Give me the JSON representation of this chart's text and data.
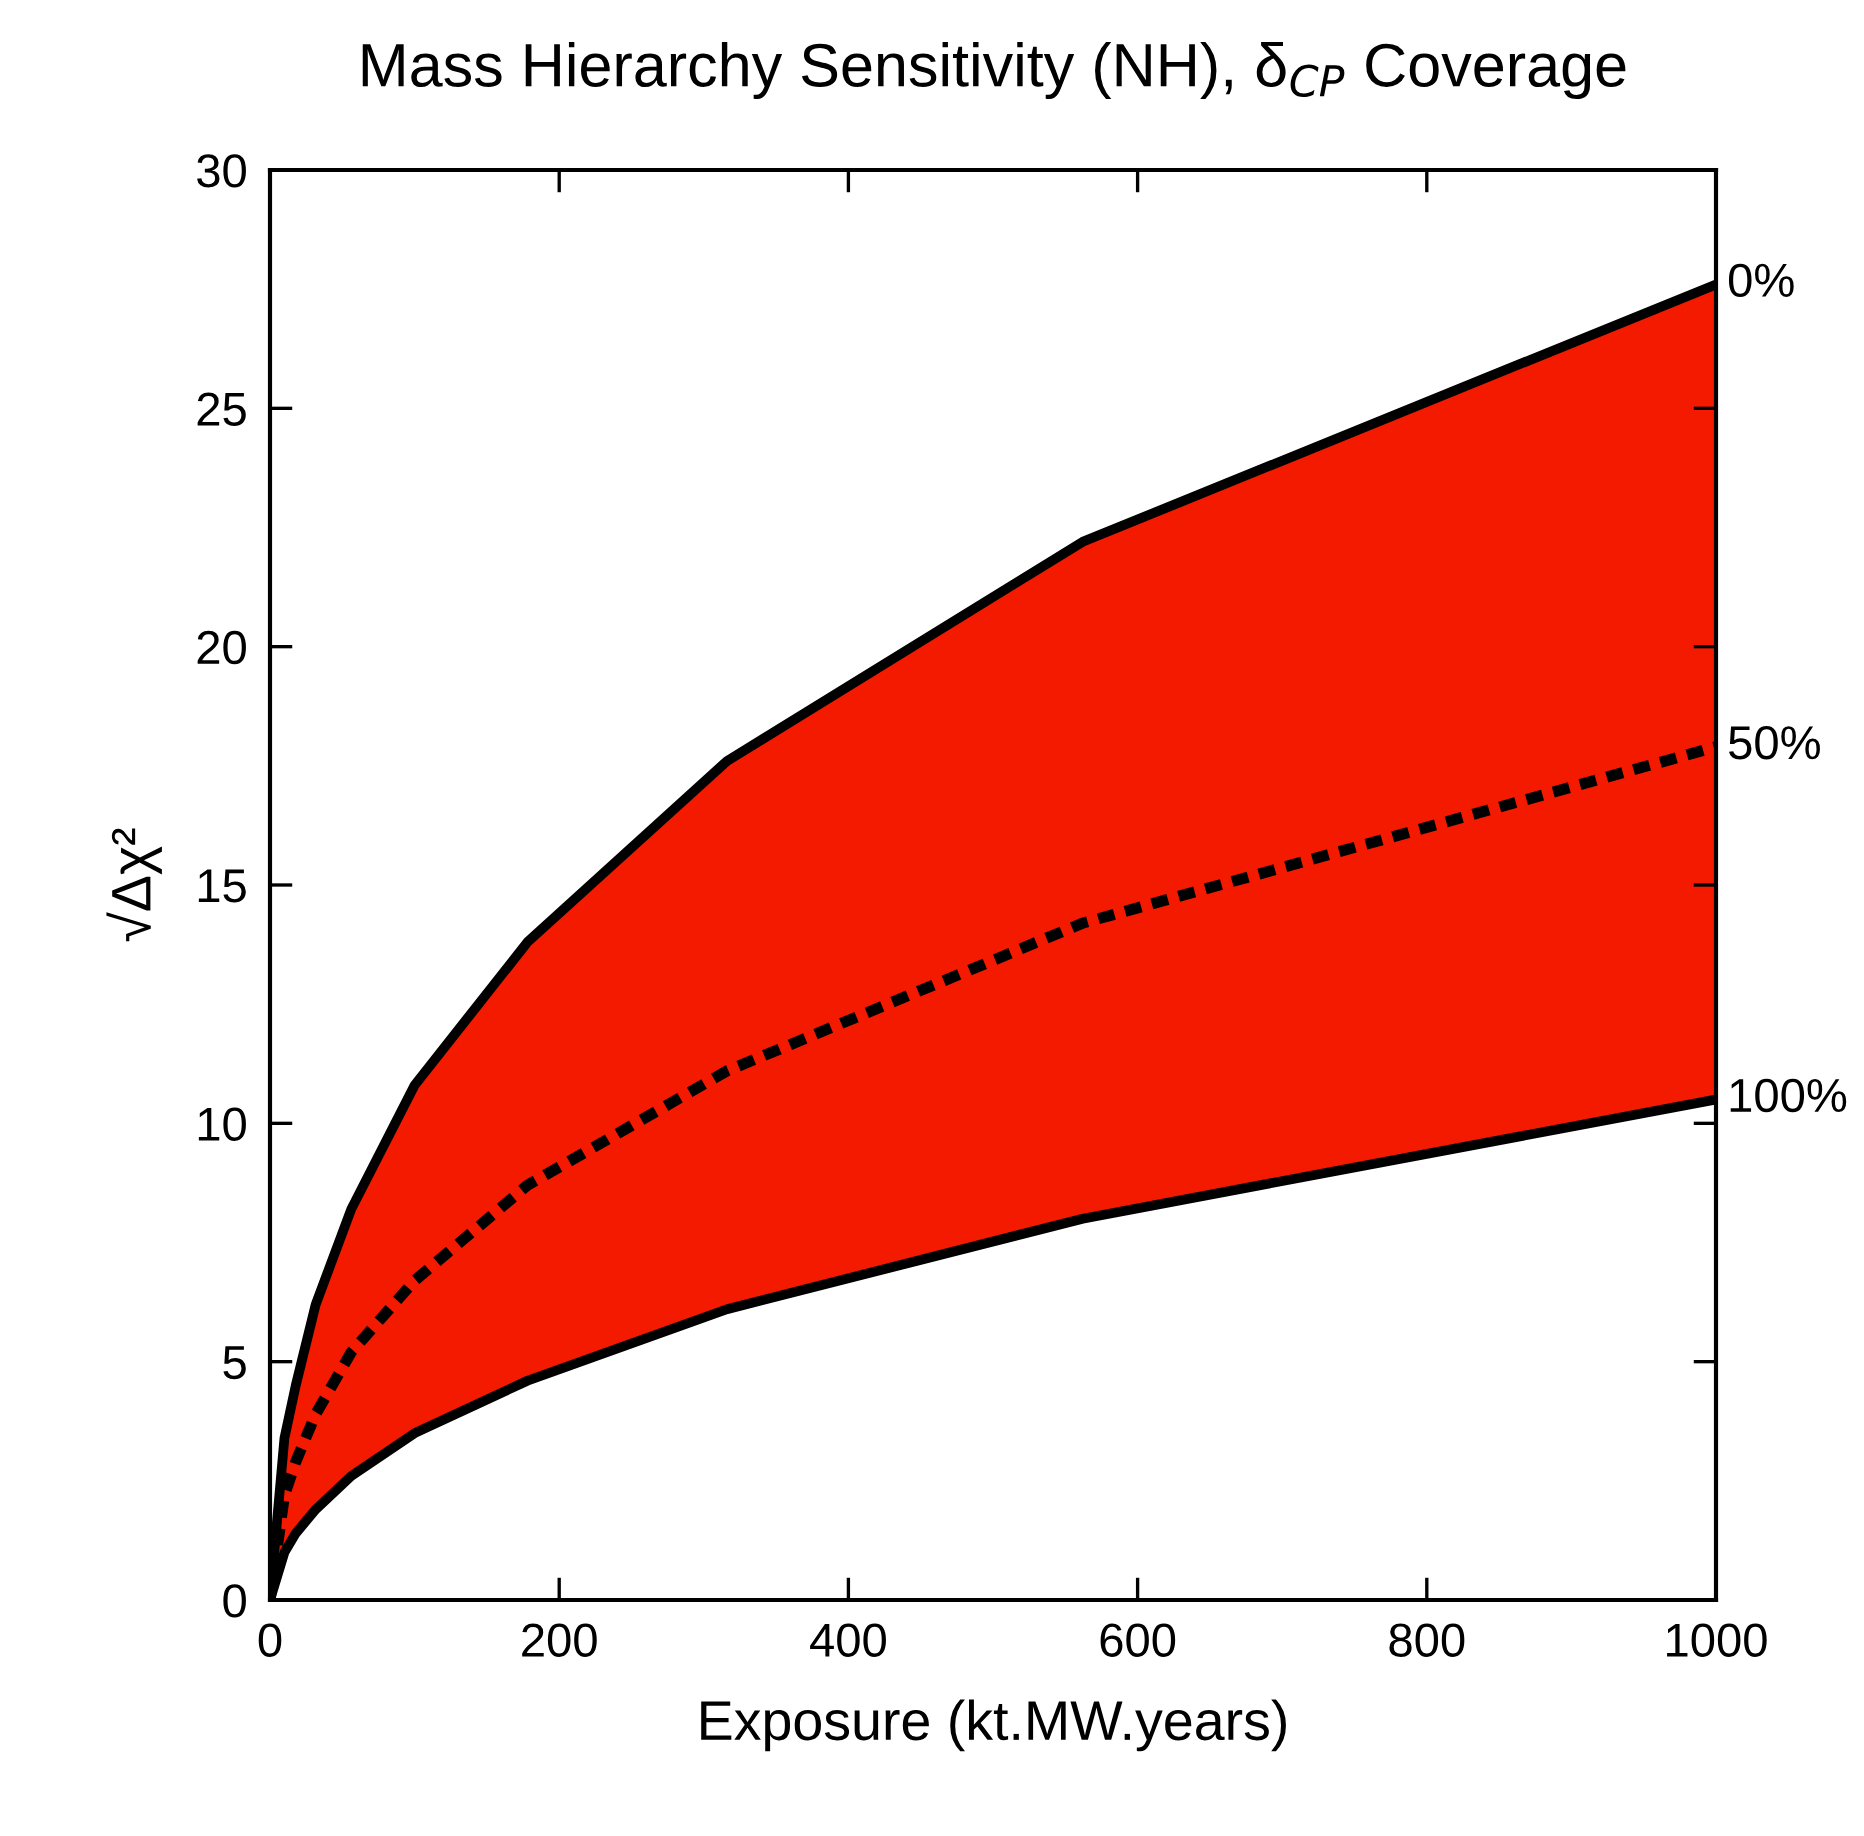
{
  "chart_data": {
    "type": "line",
    "title": "Mass Hierarchy Sensitivity (NH), δ$_{CP}$ Coverage",
    "xlabel": "Exposure (kt.MW.years)",
    "ylabel": "√Δχ²",
    "x": [
      0,
      10,
      17.8,
      31.6,
      56.2,
      100,
      178,
      316,
      562,
      1000
    ],
    "series": [
      {
        "name": "0%",
        "color": "#000000",
        "line_style": "solid",
        "values": [
          0,
          3.4,
          4.5,
          6.2,
          8.2,
          10.8,
          13.8,
          17.6,
          22.2,
          27.6
        ]
      },
      {
        "name": "50%",
        "color": "#000000",
        "line_style": "dotted",
        "values": [
          0,
          2.2,
          2.9,
          3.9,
          5.2,
          6.7,
          8.7,
          11.1,
          14.2,
          17.9
        ],
        "lower": [
          0,
          1.0,
          1.4,
          1.9,
          2.6,
          3.5,
          4.6,
          6.1,
          8.0,
          10.5
        ],
        "upper": [
          0,
          3.4,
          4.5,
          6.2,
          8.2,
          10.8,
          13.8,
          17.6,
          22.2,
          27.6
        ]
      },
      {
        "name": "100%",
        "color": "#000000",
        "line_style": "solid",
        "values": [
          0,
          1.0,
          1.4,
          1.9,
          2.6,
          3.5,
          4.6,
          6.1,
          8.0,
          10.5
        ]
      }
    ],
    "xlim": [
      0,
      1000
    ],
    "ylim": [
      0,
      30
    ],
    "xticks": [
      0,
      200,
      400,
      600,
      800,
      1000
    ],
    "yticks": [
      0,
      5,
      10,
      15,
      20,
      25,
      30
    ],
    "grid": false,
    "legend": "right",
    "marker": "none"
  }
}
